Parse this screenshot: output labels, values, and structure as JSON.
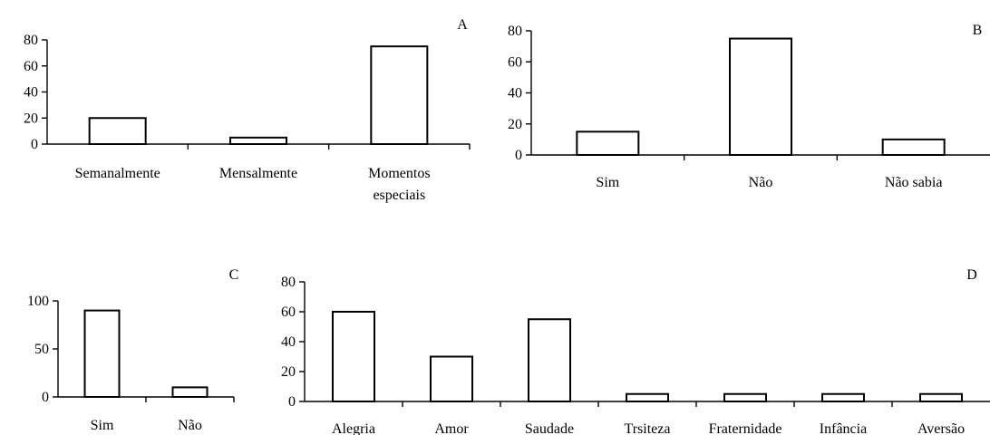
{
  "chart_data": [
    {
      "id": "A",
      "type": "bar",
      "panel_label": "A",
      "categories": [
        [
          "Semanalmente"
        ],
        [
          "Mensalmente"
        ],
        [
          "Momentos",
          "especiais"
        ]
      ],
      "values": [
        20,
        5,
        75
      ],
      "ylim": [
        0,
        80
      ],
      "yticks": [
        0,
        20,
        40,
        60,
        80
      ]
    },
    {
      "id": "B",
      "type": "bar",
      "panel_label": "B",
      "categories": [
        [
          "Sim"
        ],
        [
          "Não"
        ],
        [
          "Não sabia"
        ]
      ],
      "values": [
        15,
        75,
        10
      ],
      "ylim": [
        0,
        80
      ],
      "yticks": [
        0,
        20,
        40,
        60,
        80
      ]
    },
    {
      "id": "C",
      "type": "bar",
      "panel_label": "C",
      "categories": [
        [
          "Sim"
        ],
        [
          "Não"
        ]
      ],
      "values": [
        90,
        10
      ],
      "ylim": [
        0,
        100
      ],
      "yticks": [
        0,
        50,
        100
      ]
    },
    {
      "id": "D",
      "type": "bar",
      "panel_label": "D",
      "categories": [
        [
          "Alegria"
        ],
        [
          "Amor"
        ],
        [
          "Saudade"
        ],
        [
          "Trsiteza"
        ],
        [
          "Fraternidade"
        ],
        [
          "Infância"
        ],
        [
          "Aversão"
        ]
      ],
      "values": [
        60,
        30,
        55,
        5,
        5,
        5,
        5
      ],
      "ylim": [
        0,
        80
      ],
      "yticks": [
        0,
        20,
        40,
        60,
        80
      ]
    }
  ]
}
